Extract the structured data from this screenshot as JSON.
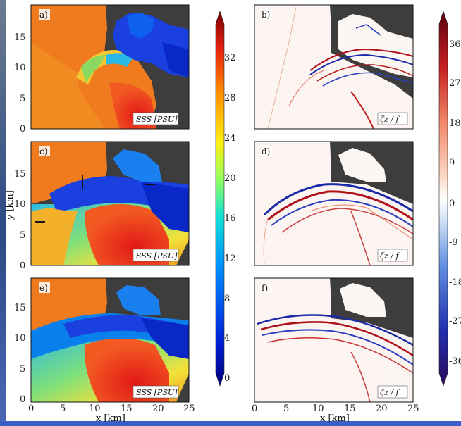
{
  "panels": [
    {
      "id": "a",
      "letter": "a)",
      "quantity": "SSS [PSU]",
      "kind": "salinity"
    },
    {
      "id": "b",
      "letter": "b)",
      "quantity": "ζz / f",
      "kind": "vorticity"
    },
    {
      "id": "c",
      "letter": "c)",
      "quantity": "SSS [PSU]",
      "kind": "salinity"
    },
    {
      "id": "d",
      "letter": "d)",
      "quantity": "ζz / f",
      "kind": "vorticity"
    },
    {
      "id": "e",
      "letter": "e)",
      "quantity": "SSS [PSU]",
      "kind": "salinity"
    },
    {
      "id": "f",
      "letter": "f)",
      "quantity": "ζz / f",
      "kind": "vorticity"
    }
  ],
  "axes": {
    "ylabel": "y [km]",
    "xlabel": "x [km]",
    "yticks": [
      "0",
      "5",
      "10",
      "15"
    ],
    "xticks": [
      "0",
      "5",
      "10",
      "15",
      "20",
      "25"
    ]
  },
  "colorbar_salinity": {
    "ticks": [
      "0",
      "4",
      "8",
      "12",
      "16",
      "20",
      "24",
      "28",
      "32"
    ]
  },
  "colorbar_vorticity": {
    "ticks": [
      "36",
      "27",
      "18",
      "9",
      "0",
      "-9",
      "-18",
      "-27",
      "-36"
    ]
  },
  "colors": {
    "land": "#3d3d3d",
    "plume_orange": "#f07a1e",
    "low_salinity_blue": "#1030d0",
    "high_salinity_red": "#e8321c",
    "vorticity_pos": "#b0101a",
    "vorticity_neg": "#1a2aa8"
  }
}
